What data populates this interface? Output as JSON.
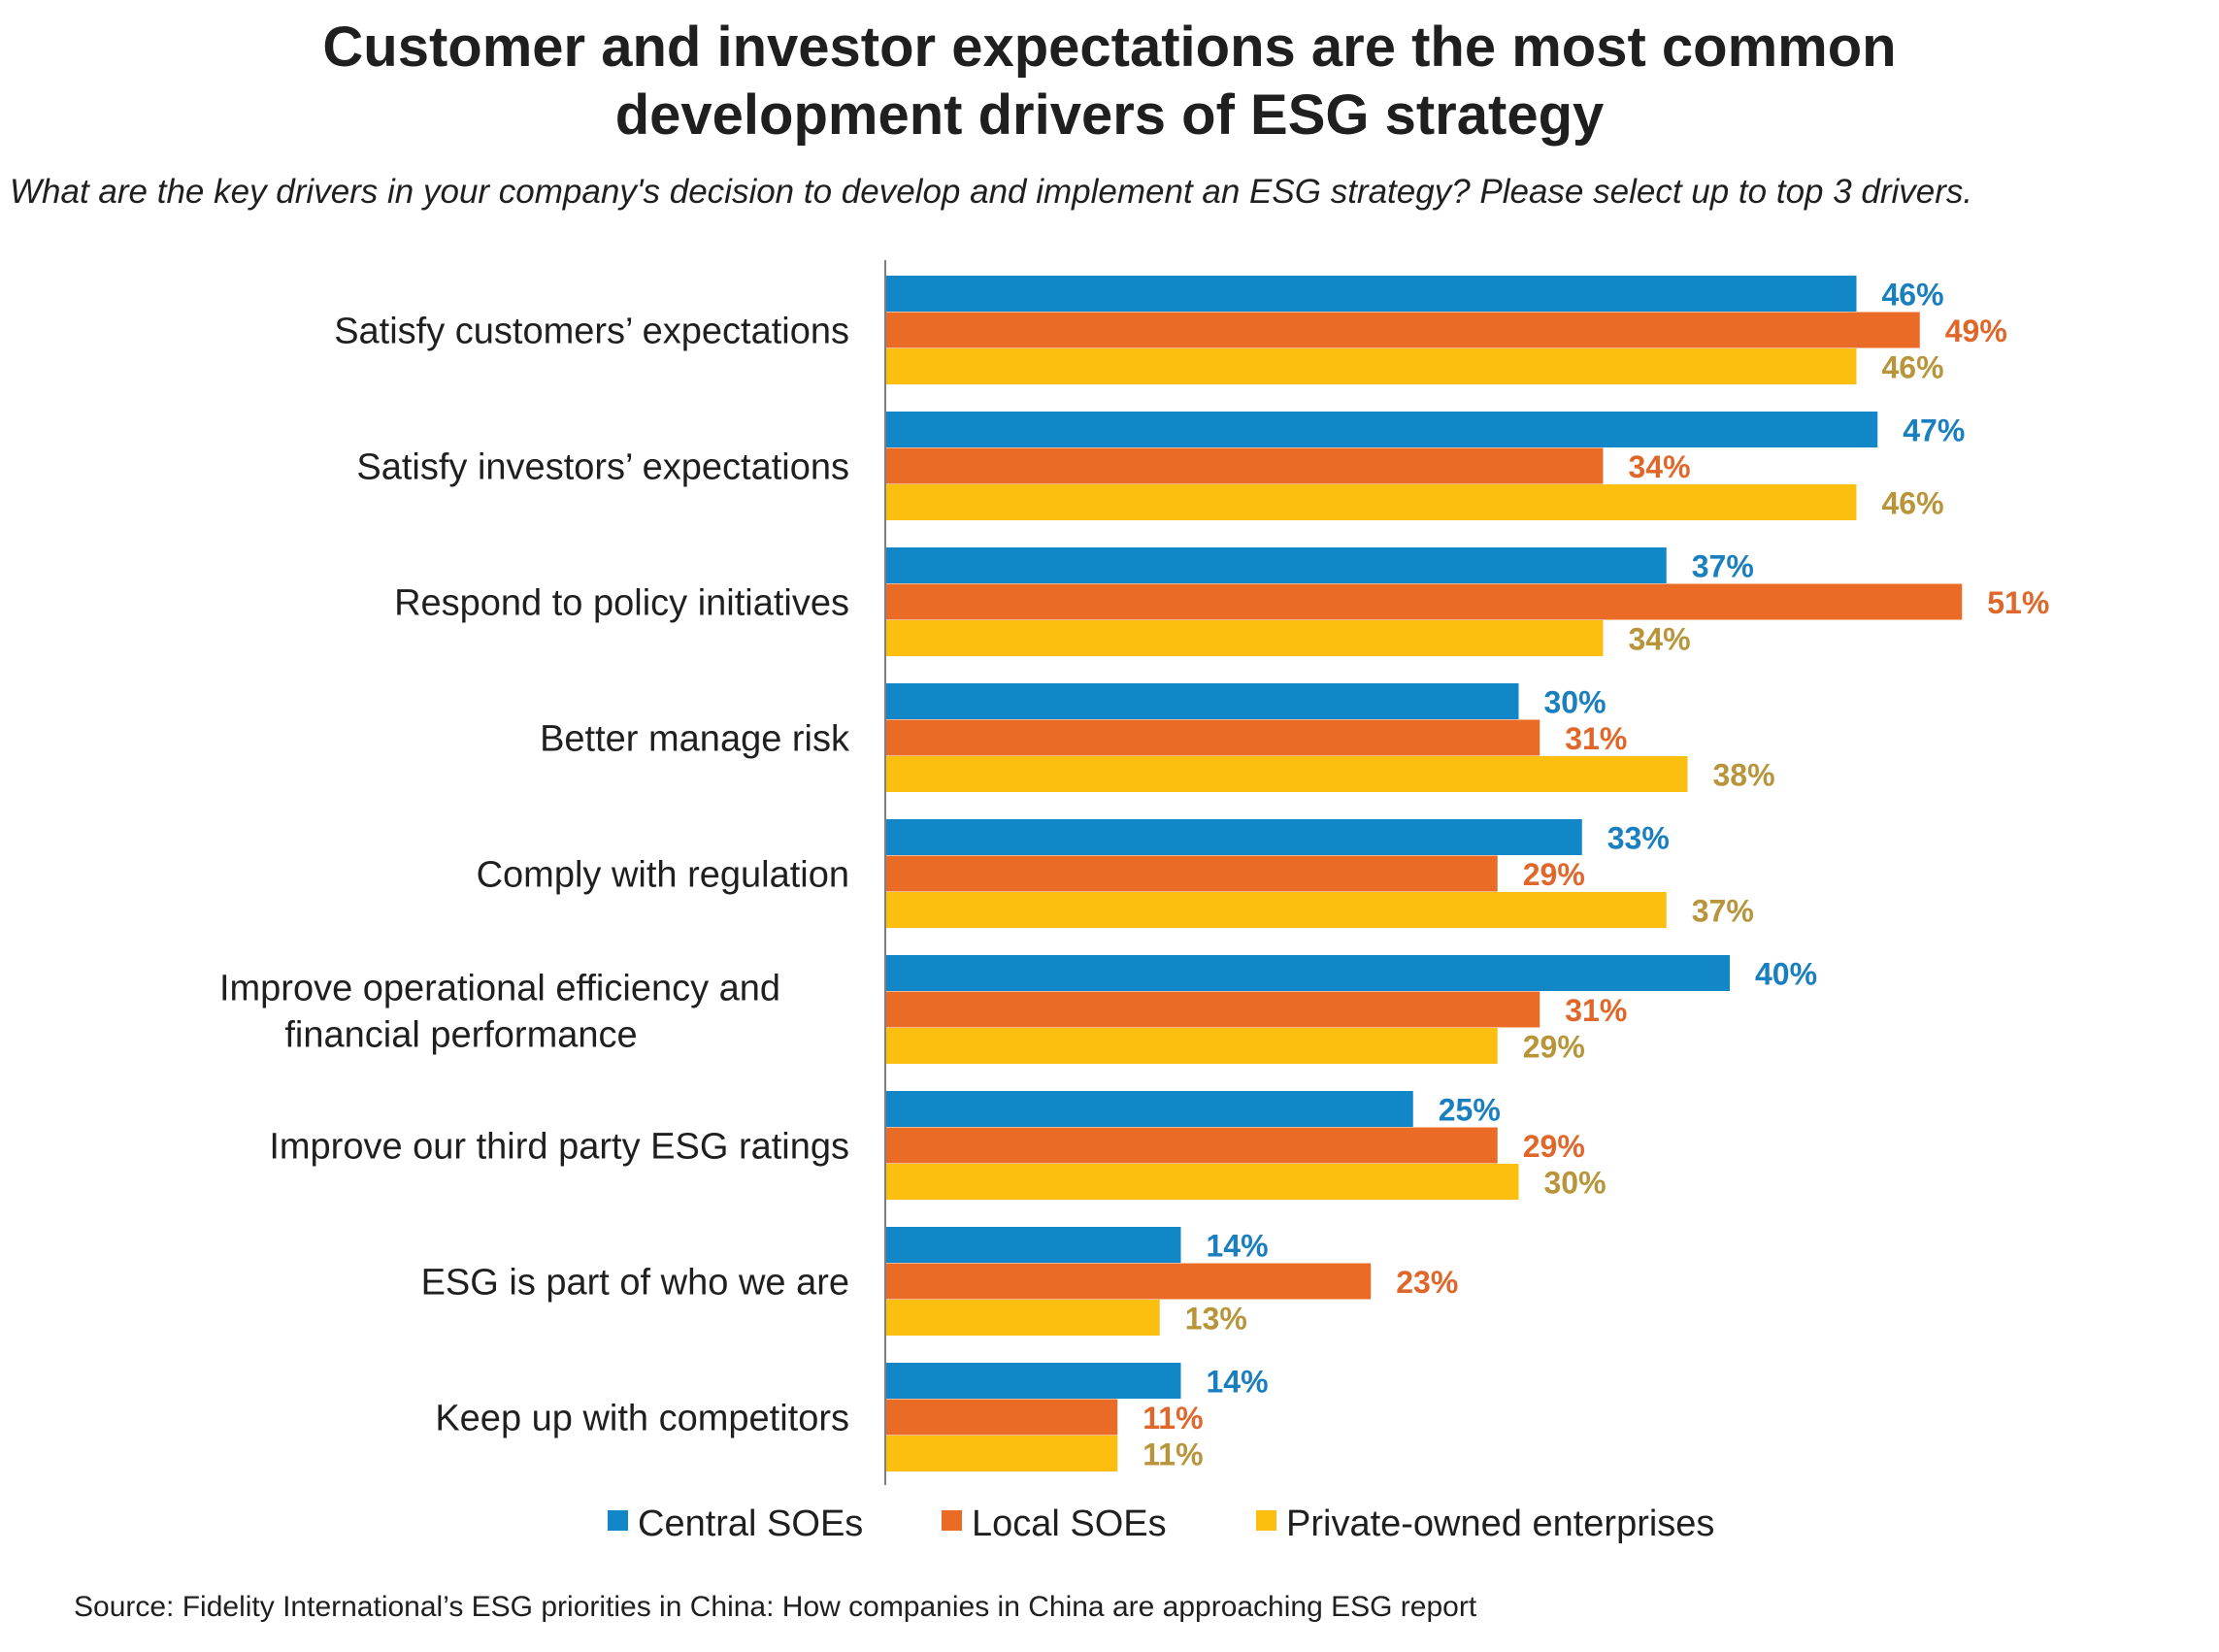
{
  "header": {
    "title_line1": "Customer and investor expectations are the most common",
    "title_line2": "development drivers of ESG strategy",
    "subtitle": "What are the key drivers in your company's decision to develop and implement an ESG strategy? Please select up to top 3 drivers."
  },
  "footer": {
    "source": "Source: Fidelity International’s ESG priorities in China: How companies in China are approaching ESG report"
  },
  "chart_data": {
    "type": "bar",
    "orientation": "horizontal",
    "categories": [
      "Satisfy customers’ expectations",
      "Satisfy investors’ expectations",
      "Respond to policy initiatives",
      "Better manage risk",
      "Comply with regulation",
      "Improve operational efficiency and financial performance",
      "Improve our third party ESG ratings",
      "ESG is part of who we are",
      "Keep up with competitors"
    ],
    "series": [
      {
        "name": "Central SOEs",
        "color": "#1187c8",
        "label_color": "#1a7fbf",
        "values": [
          46,
          47,
          37,
          30,
          33,
          40,
          25,
          14,
          14
        ],
        "labels": [
          "46%",
          "47%",
          "37%",
          "30%",
          "33%",
          "40%",
          "25%",
          "14%",
          "14%"
        ]
      },
      {
        "name": "Local SOEs",
        "color": "#e96b25",
        "label_color": "#e0672a",
        "values": [
          49,
          34,
          51,
          31,
          29,
          31,
          29,
          23,
          11
        ],
        "labels": [
          "49%",
          "34%",
          "51%",
          "31%",
          "29%",
          "31%",
          "29%",
          "23%",
          "11%"
        ]
      },
      {
        "name": "Private-owned enterprises",
        "color": "#fcbf10",
        "label_color": "#b8943a",
        "values": [
          46,
          46,
          34,
          38,
          37,
          29,
          30,
          13,
          11
        ],
        "labels": [
          "46%",
          "46%",
          "34%",
          "38%",
          "37%",
          "29%",
          "30%",
          "13%",
          "11%"
        ]
      }
    ],
    "xlim": [
      0,
      51
    ],
    "grid": false,
    "legend_position": "bottom"
  }
}
